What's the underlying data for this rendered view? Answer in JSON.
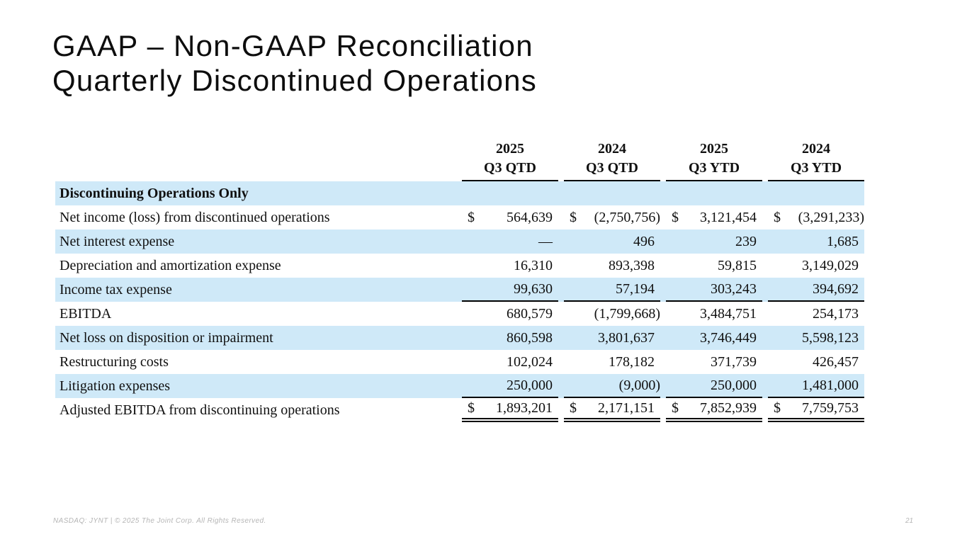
{
  "slide": {
    "title_line1": "GAAP – Non-GAAP Reconciliation",
    "title_line2": "Quarterly Discontinued Operations",
    "footer_left": "NASDAQ: JYNT   |   © 2025 The Joint Corp. All Rights Reserved.",
    "page_number": "21"
  },
  "colors": {
    "row_highlight": "#cfe9f8",
    "rule_line": "#000000",
    "footer_text": "#b5b5b5"
  },
  "table": {
    "dollar_sign": "$",
    "column_headers": [
      {
        "year": "2025",
        "period": "Q3 QTD"
      },
      {
        "year": "2024",
        "period": "Q3 QTD"
      },
      {
        "year": "2025",
        "period": "Q3 YTD"
      },
      {
        "year": "2024",
        "period": "Q3 YTD"
      }
    ],
    "section_header": "Discontinuing Operations Only",
    "rows": [
      {
        "label": "Net income (loss) from discontinued operations",
        "dollar": true,
        "values": [
          "564,639",
          "(2,750,756)",
          "3,121,454",
          "(3,291,233)"
        ],
        "rule": "none"
      },
      {
        "label": "Net interest expense",
        "dollar": false,
        "values": [
          "—",
          "496",
          "239",
          "1,685"
        ],
        "rule": "none"
      },
      {
        "label": "Depreciation and amortization expense",
        "dollar": false,
        "values": [
          "16,310",
          "893,398",
          "59,815",
          "3,149,029"
        ],
        "rule": "none"
      },
      {
        "label": "Income tax expense",
        "dollar": false,
        "values": [
          "99,630",
          "57,194",
          "303,243",
          "394,692"
        ],
        "rule": "single"
      },
      {
        "label": "EBITDA",
        "dollar": false,
        "values": [
          "680,579",
          "(1,799,668)",
          "3,484,751",
          "254,173"
        ],
        "rule": "none"
      },
      {
        "label": "Net loss on disposition or impairment",
        "dollar": false,
        "values": [
          "860,598",
          "3,801,637",
          "3,746,449",
          "5,598,123"
        ],
        "rule": "none"
      },
      {
        "label": "Restructuring costs",
        "dollar": false,
        "values": [
          "102,024",
          "178,182",
          "371,739",
          "426,457"
        ],
        "rule": "none"
      },
      {
        "label": "Litigation expenses",
        "dollar": false,
        "values": [
          "250,000",
          "(9,000)",
          "250,000",
          "1,481,000"
        ],
        "rule": "single"
      },
      {
        "label": "Adjusted EBITDA from discontinuing operations",
        "dollar": true,
        "values": [
          "1,893,201",
          "2,171,151",
          "7,852,939",
          "7,759,753"
        ],
        "rule": "double"
      }
    ]
  }
}
